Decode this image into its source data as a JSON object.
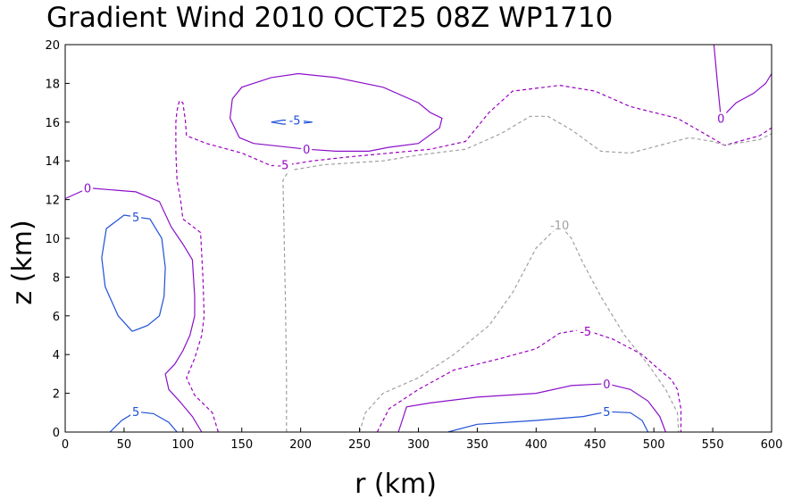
{
  "chart_data": {
    "type": "contour",
    "title": "Gradient Wind 2010 OCT25 08Z   WP1710",
    "xlabel": "r (km)",
    "ylabel": "z (km)",
    "xlim": [
      0,
      600
    ],
    "ylim": [
      0,
      20
    ],
    "x_ticks": [
      "0",
      "50",
      "100",
      "150",
      "200",
      "250",
      "300",
      "350",
      "400",
      "450",
      "500",
      "550",
      "600"
    ],
    "y_ticks": [
      "0",
      "2",
      "4",
      "6",
      "8",
      "10",
      "12",
      "14",
      "16",
      "18",
      "20"
    ],
    "grid": false,
    "styles": {
      "positive": {
        "color": "#1e4fd8",
        "dash": ""
      },
      "zero": {
        "color": "#8b10c8",
        "dash": ""
      },
      "neg5": {
        "color": "#9a00c0",
        "dash": "4,3"
      },
      "neg10": {
        "color": "#a0a0a0",
        "dash": "4,3"
      }
    },
    "contours": [
      {
        "level": 0,
        "label": "0",
        "style": "zero",
        "label_at": [
          19,
          12.6
        ],
        "points": [
          [
            0,
            12.05
          ],
          [
            20,
            12.6
          ],
          [
            60,
            12.4
          ],
          [
            80,
            11.9
          ],
          [
            90,
            10.6
          ],
          [
            100,
            9.7
          ],
          [
            108,
            8.9
          ],
          [
            110,
            7
          ],
          [
            110,
            6
          ],
          [
            106,
            5
          ],
          [
            100,
            4.2
          ],
          [
            93,
            3.5
          ],
          [
            85,
            3
          ],
          [
            88,
            2.2
          ],
          [
            97,
            1.6
          ],
          [
            108,
            0.8
          ],
          [
            116,
            0
          ]
        ]
      },
      {
        "level": 5,
        "label": "5",
        "style": "positive",
        "label_at": [
          60,
          11.1
        ],
        "points": [
          [
            57,
            5.2
          ],
          [
            45,
            6
          ],
          [
            34,
            7.5
          ],
          [
            31,
            9
          ],
          [
            35,
            10.5
          ],
          [
            50,
            11.2
          ],
          [
            72,
            11
          ],
          [
            82,
            10
          ],
          [
            85,
            8.5
          ],
          [
            84,
            7
          ],
          [
            80,
            6
          ],
          [
            70,
            5.5
          ],
          [
            57,
            5.2
          ]
        ]
      },
      {
        "level": 5,
        "label": "5",
        "style": "positive",
        "label_at": [
          60,
          1.05
        ],
        "points": [
          [
            38,
            0
          ],
          [
            48,
            0.6
          ],
          [
            60,
            1.05
          ],
          [
            75,
            0.95
          ],
          [
            88,
            0.5
          ],
          [
            95,
            0
          ]
        ]
      },
      {
        "level": -5,
        "label": "-5",
        "style": "neg5",
        "label_at": [
          185,
          13.8
        ],
        "points": [
          [
            130,
            0
          ],
          [
            125,
            1
          ],
          [
            110,
            1.9
          ],
          [
            103,
            2.8
          ],
          [
            110,
            3.8
          ],
          [
            116,
            5
          ],
          [
            118,
            6
          ],
          [
            117,
            8
          ],
          [
            115,
            10.3
          ],
          [
            100,
            11
          ],
          [
            98,
            12
          ],
          [
            95,
            13
          ],
          [
            94,
            14.5
          ],
          [
            94,
            16
          ],
          [
            95,
            16.6
          ],
          [
            97,
            17.1
          ],
          [
            100,
            17
          ],
          [
            102,
            16.1
          ],
          [
            103,
            15.3
          ],
          [
            120,
            14.9
          ],
          [
            150,
            14.4
          ],
          [
            175,
            13.75
          ],
          [
            195,
            13.85
          ],
          [
            210,
            14
          ],
          [
            240,
            14.2
          ],
          [
            310,
            14.6
          ],
          [
            340,
            15
          ],
          [
            360,
            16.5
          ],
          [
            380,
            17.6
          ],
          [
            420,
            17.9
          ],
          [
            450,
            17.6
          ],
          [
            480,
            16.8
          ],
          [
            500,
            16.5
          ],
          [
            520,
            16.2
          ],
          [
            543,
            15.4
          ],
          [
            560,
            14.8
          ],
          [
            590,
            15.3
          ],
          [
            600,
            15.7
          ]
        ]
      },
      {
        "level": -5,
        "label": "-5",
        "style": "neg5",
        "label_at": [
          442,
          5.2
        ],
        "points": [
          [
            265,
            0
          ],
          [
            275,
            1.2
          ],
          [
            300,
            2.2
          ],
          [
            330,
            3.2
          ],
          [
            370,
            3.8
          ],
          [
            400,
            4.3
          ],
          [
            420,
            5.1
          ],
          [
            440,
            5.3
          ],
          [
            465,
            4.8
          ],
          [
            490,
            4
          ],
          [
            505,
            3.2
          ],
          [
            515,
            2.7
          ],
          [
            520,
            2.2
          ],
          [
            523,
            1.2
          ],
          [
            523,
            0
          ]
        ]
      },
      {
        "level": 0,
        "label": "0",
        "style": "zero",
        "label_at": [
          205,
          14.6
        ],
        "points": [
          [
            148,
            15.2
          ],
          [
            140,
            16.2
          ],
          [
            142,
            17.2
          ],
          [
            150,
            17.8
          ],
          [
            175,
            18.3
          ],
          [
            198,
            18.5
          ],
          [
            230,
            18.3
          ],
          [
            270,
            17.8
          ],
          [
            300,
            17
          ],
          [
            310,
            16.5
          ],
          [
            320,
            16.2
          ],
          [
            318,
            15.7
          ],
          [
            300,
            14.9
          ],
          [
            275,
            14.7
          ],
          [
            258,
            14.5
          ],
          [
            230,
            14.5
          ],
          [
            205,
            14.6
          ],
          [
            175,
            14.8
          ],
          [
            160,
            14.9
          ],
          [
            148,
            15.2
          ]
        ]
      },
      {
        "level": -5,
        "label": "-5",
        "style": "positive",
        "label_at": [
          195,
          16.1
        ],
        "points": [
          [
            175,
            16
          ],
          [
            185,
            16.1
          ],
          [
            195,
            16.1
          ],
          [
            210,
            16
          ],
          [
            195,
            15.9
          ],
          [
            185,
            15.9
          ],
          [
            175,
            16
          ]
        ]
      },
      {
        "level": 0,
        "label": "0",
        "style": "zero",
        "label_at": [
          557,
          16.2
        ],
        "points": [
          [
            551,
            20
          ],
          [
            554,
            18
          ],
          [
            557,
            16.2
          ],
          [
            570,
            17
          ],
          [
            585,
            17.5
          ],
          [
            595,
            18
          ],
          [
            600,
            18.5
          ]
        ]
      },
      {
        "level": 0,
        "label": "0",
        "style": "zero",
        "label_at": [
          460,
          2.5
        ],
        "points": [
          [
            283,
            0
          ],
          [
            290,
            1.3
          ],
          [
            310,
            1.5
          ],
          [
            350,
            1.8
          ],
          [
            400,
            2
          ],
          [
            430,
            2.4
          ],
          [
            460,
            2.5
          ],
          [
            480,
            2.2
          ],
          [
            495,
            1.6
          ],
          [
            505,
            0.8
          ],
          [
            510,
            0
          ]
        ]
      },
      {
        "level": 5,
        "label": "5",
        "style": "positive",
        "label_at": [
          460,
          1.05
        ],
        "points": [
          [
            325,
            0
          ],
          [
            350,
            0.4
          ],
          [
            400,
            0.6
          ],
          [
            440,
            0.8
          ],
          [
            460,
            1.05
          ],
          [
            480,
            1
          ],
          [
            490,
            0.6
          ],
          [
            495,
            0
          ]
        ]
      },
      {
        "level": -10,
        "label": "-10",
        "style": "neg10",
        "label_at": [
          420,
          10.7
        ],
        "points": [
          [
            188,
            0
          ],
          [
            188,
            3
          ],
          [
            187,
            7
          ],
          [
            186,
            10
          ],
          [
            185,
            13
          ],
          [
            190,
            13.5
          ],
          [
            220,
            13.8
          ],
          [
            270,
            14
          ],
          [
            300,
            14.3
          ],
          [
            340,
            14.6
          ],
          [
            370,
            15.4
          ],
          [
            395,
            16.3
          ],
          [
            410,
            16.3
          ],
          [
            430,
            15.6
          ],
          [
            455,
            14.5
          ],
          [
            480,
            14.4
          ],
          [
            505,
            14.8
          ],
          [
            530,
            15.2
          ],
          [
            550,
            15
          ],
          [
            560,
            14.8
          ],
          [
            590,
            15.1
          ],
          [
            600,
            15.4
          ]
        ]
      },
      {
        "level": -10,
        "label": "-10",
        "style": "neg10",
        "label_at": [
          420,
          10.7
        ],
        "points": [
          [
            250,
            0
          ],
          [
            255,
            1
          ],
          [
            270,
            2
          ],
          [
            300,
            2.8
          ],
          [
            330,
            4
          ],
          [
            360,
            5.5
          ],
          [
            380,
            7.2
          ],
          [
            400,
            9.5
          ],
          [
            420,
            10.7
          ],
          [
            430,
            10
          ],
          [
            440,
            8.7
          ],
          [
            455,
            7
          ],
          [
            475,
            5
          ],
          [
            495,
            3.5
          ],
          [
            510,
            2.2
          ],
          [
            520,
            1
          ],
          [
            521,
            0
          ]
        ]
      }
    ]
  }
}
